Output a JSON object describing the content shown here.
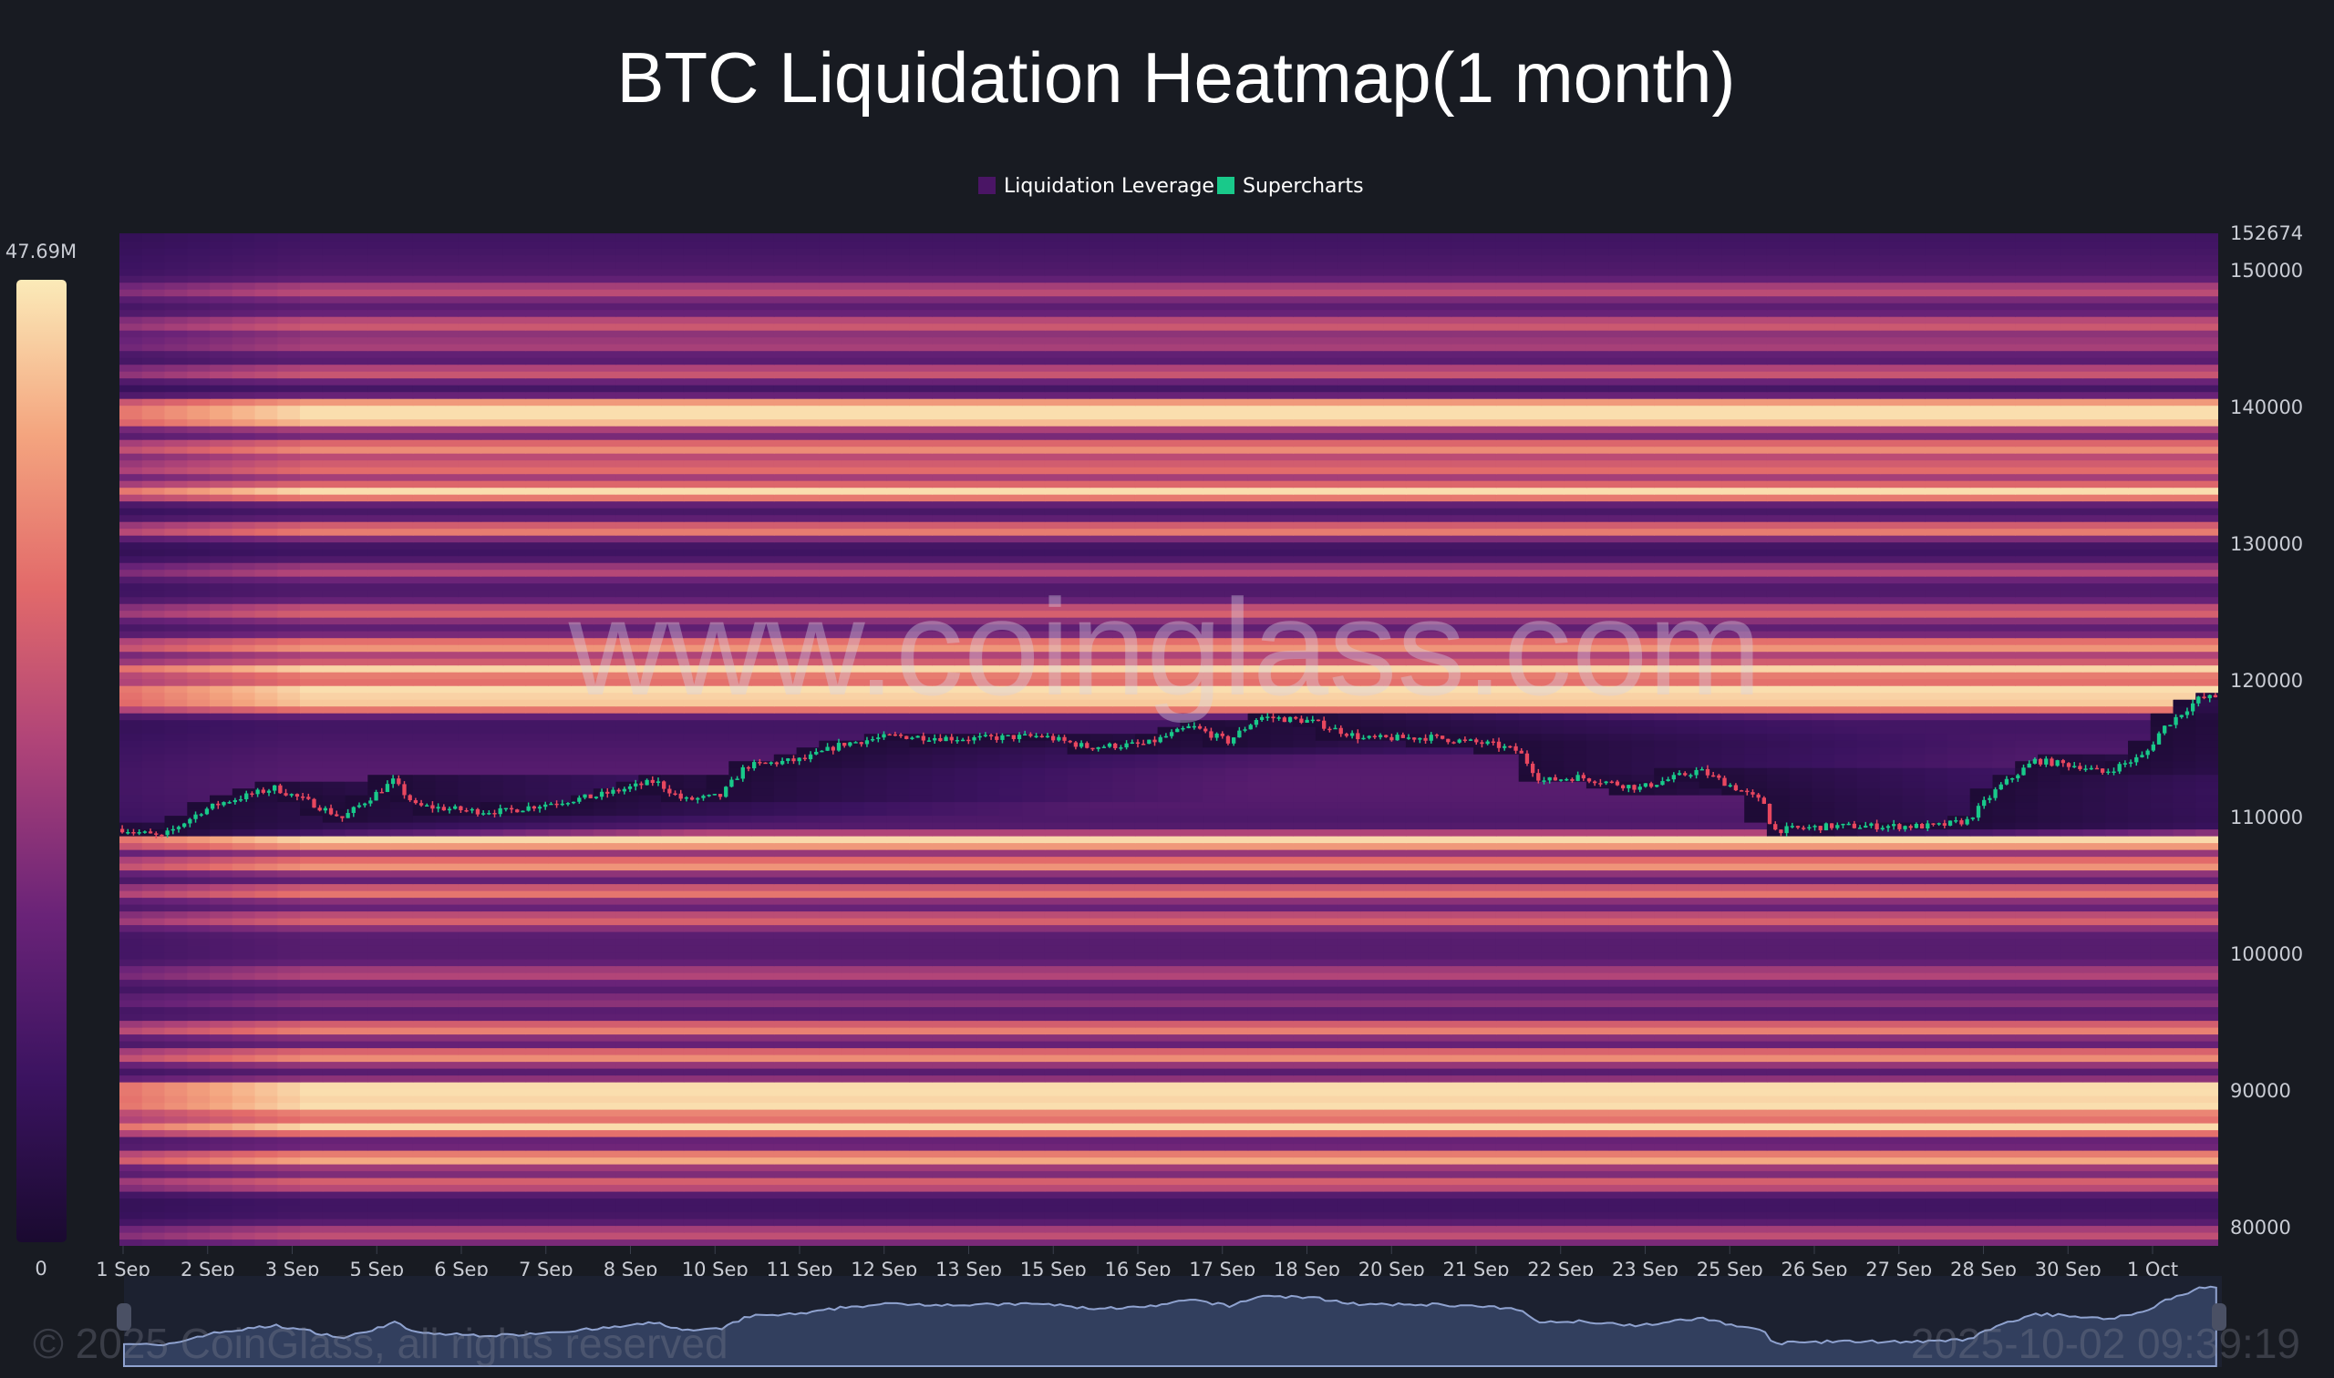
{
  "chart_data": {
    "type": "heatmap",
    "title": "BTC Liquidation Heatmap(1 month)",
    "legend": {
      "placement": "top-center",
      "items": [
        {
          "label": "Liquidation Leverage",
          "color": "#4a1565"
        },
        {
          "label": "Supercharts",
          "color": "#19c98a"
        }
      ]
    },
    "colorbar": {
      "max_label": "47.69M",
      "min_label": "0",
      "colors": [
        "#1a0a30",
        "#3b1360",
        "#6a2378",
        "#b04478",
        "#e26a6a",
        "#f4a57f",
        "#fbeab8"
      ]
    },
    "y_axis": {
      "position": "right",
      "ylim": [
        78600,
        152674
      ],
      "top_label": "152674",
      "ticks": [
        "150000",
        "140000",
        "130000",
        "120000",
        "110000",
        "100000",
        "90000",
        "80000"
      ]
    },
    "x_axis": {
      "xlim": [
        "2025-09-01T00:00",
        "2025-10-02T00:00"
      ],
      "ticks": [
        "1 Sep",
        "2 Sep",
        "3 Sep",
        "5 Sep",
        "6 Sep",
        "7 Sep",
        "8 Sep",
        "10 Sep",
        "11 Sep",
        "12 Sep",
        "13 Sep",
        "15 Sep",
        "16 Sep",
        "17 Sep",
        "18 Sep",
        "20 Sep",
        "21 Sep",
        "22 Sep",
        "23 Sep",
        "25 Sep",
        "26 Sep",
        "27 Sep",
        "28 Sep",
        "30 Sep",
        "1 Oct"
      ]
    },
    "liquidation_bands": [
      {
        "price": 148500,
        "strength": 0.3
      },
      {
        "price": 146000,
        "strength": 0.38
      },
      {
        "price": 144500,
        "strength": 0.3
      },
      {
        "price": 142500,
        "strength": 0.45
      },
      {
        "price": 140000,
        "strength": 0.85
      },
      {
        "price": 139000,
        "strength": 0.7
      },
      {
        "price": 137000,
        "strength": 0.55
      },
      {
        "price": 135500,
        "strength": 0.45
      },
      {
        "price": 133800,
        "strength": 0.82
      },
      {
        "price": 131000,
        "strength": 0.6
      },
      {
        "price": 128000,
        "strength": 0.35
      },
      {
        "price": 125000,
        "strength": 0.4
      },
      {
        "price": 122500,
        "strength": 0.6
      },
      {
        "price": 120800,
        "strength": 0.78
      },
      {
        "price": 119300,
        "strength": 0.88
      },
      {
        "price": 118200,
        "strength": 0.72
      },
      {
        "price": 108200,
        "strength": 0.85
      },
      {
        "price": 106500,
        "strength": 0.68
      },
      {
        "price": 104500,
        "strength": 0.55
      },
      {
        "price": 102500,
        "strength": 0.42
      },
      {
        "price": 98500,
        "strength": 0.3
      },
      {
        "price": 96500,
        "strength": 0.25
      },
      {
        "price": 94500,
        "strength": 0.62
      },
      {
        "price": 92500,
        "strength": 0.62
      },
      {
        "price": 90000,
        "strength": 1.0
      },
      {
        "price": 88800,
        "strength": 0.72
      },
      {
        "price": 87300,
        "strength": 0.75
      },
      {
        "price": 85000,
        "strength": 0.72
      },
      {
        "price": 83200,
        "strength": 0.5
      },
      {
        "price": 79500,
        "strength": 0.35
      }
    ],
    "price_series": {
      "name": "Supercharts",
      "colors": {
        "up": "#19c98a",
        "down": "#e8475f"
      },
      "points": [
        [
          "2025-09-01T00:00",
          109100
        ],
        [
          "2025-09-01T14:00",
          108500
        ],
        [
          "2025-09-02T04:00",
          110400
        ],
        [
          "2025-09-02T11:00",
          111000
        ],
        [
          "2025-09-03T06:00",
          112100
        ],
        [
          "2025-09-03T19:00",
          111000
        ],
        [
          "2025-09-04T06:00",
          109900
        ],
        [
          "2025-09-05T00:00",
          112600
        ],
        [
          "2025-09-05T08:00",
          110800
        ],
        [
          "2025-09-06T05:00",
          110400
        ],
        [
          "2025-09-06T16:00",
          110400
        ],
        [
          "2025-09-07T08:00",
          111000
        ],
        [
          "2025-09-08T00:00",
          111500
        ],
        [
          "2025-09-08T21:00",
          112600
        ],
        [
          "2025-09-09T07:00",
          111200
        ],
        [
          "2025-09-09T20:00",
          111500
        ],
        [
          "2025-09-10T05:00",
          113700
        ],
        [
          "2025-09-11T02:00",
          114200
        ],
        [
          "2025-09-11T15:00",
          115300
        ],
        [
          "2025-09-12T09:00",
          115900
        ],
        [
          "2025-09-13T12:00",
          115700
        ],
        [
          "2025-09-14T14:00",
          115900
        ],
        [
          "2025-09-15T06:00",
          115100
        ],
        [
          "2025-09-16T03:00",
          115300
        ],
        [
          "2025-09-16T19:00",
          116600
        ],
        [
          "2025-09-17T08:00",
          115500
        ],
        [
          "2025-09-17T19:00",
          117300
        ],
        [
          "2025-09-18T13:00",
          117000
        ],
        [
          "2025-09-19T08:00",
          115700
        ],
        [
          "2025-09-20T08:00",
          115800
        ],
        [
          "2025-09-21T05:00",
          115300
        ],
        [
          "2025-09-21T15:00",
          114800
        ],
        [
          "2025-09-21T23:00",
          112600
        ],
        [
          "2025-09-22T12:00",
          112900
        ],
        [
          "2025-09-23T10:00",
          112100
        ],
        [
          "2025-09-24T07:00",
          113400
        ],
        [
          "2025-09-24T20:00",
          112100
        ],
        [
          "2025-09-25T06:00",
          111000
        ],
        [
          "2025-09-25T09:00",
          109000
        ],
        [
          "2025-09-26T06:00",
          109300
        ],
        [
          "2025-09-27T19:00",
          109300
        ],
        [
          "2025-09-28T06:00",
          109700
        ],
        [
          "2025-09-28T17:00",
          112100
        ],
        [
          "2025-09-29T06:00",
          114100
        ],
        [
          "2025-09-29T22:00",
          113700
        ],
        [
          "2025-09-30T06:00",
          113200
        ],
        [
          "2025-09-30T21:00",
          114500
        ],
        [
          "2025-10-01T03:00",
          116400
        ],
        [
          "2025-10-01T16:00",
          118600
        ],
        [
          "2025-10-01T23:00",
          118800
        ]
      ]
    },
    "watermark": "www.coinglass.com",
    "copyright": "© 2025 CoinGlass, all rights reserved",
    "timestamp": "2025-10-02 09:39:19"
  }
}
